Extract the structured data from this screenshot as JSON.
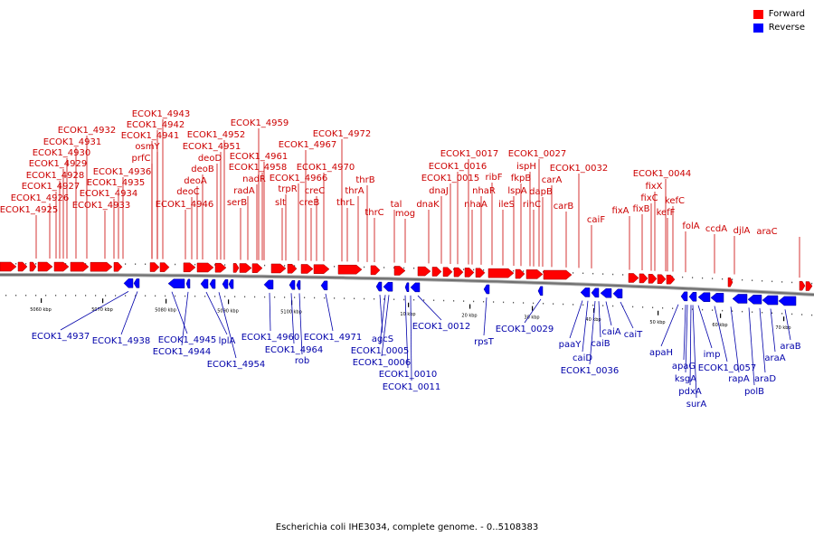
{
  "legend": {
    "forward_label": "Forward",
    "reverse_label": "Reverse",
    "forward_color": "#ff0000",
    "reverse_color": "#0000ff"
  },
  "caption": "Escherichia coli IHE3034, complete genome. - 0..5108383",
  "colors": {
    "forward_label": "#cc0000",
    "reverse_label": "#0000aa",
    "backbone": "#707070"
  },
  "forward_genes": [
    "ECOK1_4925",
    "ECOK1_4926",
    "ECOK1_4927",
    "ECOK1_4928",
    "ECOK1_4929",
    "ECOK1_4930",
    "ECOK1_4931",
    "ECOK1_4932",
    "ECOK1_4933",
    "ECOK1_4934",
    "ECOK1_4935",
    "ECOK1_4936",
    "ECOK1_4941",
    "ECOK1_4942",
    "ECOK1_4943",
    "prfC",
    "osmY",
    "deoC",
    "deoA",
    "deoB",
    "deoD",
    "ECOK1_4946",
    "ECOK1_4951",
    "ECOK1_4952",
    "serB",
    "radA",
    "nadR",
    "ECOK1_4958",
    "ECOK1_4961",
    "ECOK1_4959",
    "slt",
    "trpR",
    "ECOK1_4966",
    "ECOK1_4967",
    "creB",
    "creC",
    "ECOK1_4970",
    "ECOK1_4972",
    "thrL",
    "thrA",
    "thrB",
    "thrC",
    "tal",
    "mog",
    "dnaK",
    "dnaJ",
    "ECOK1_0015",
    "ECOK1_0016",
    "ECOK1_0017",
    "nhaA",
    "nhaR",
    "ribF",
    "ileS",
    "lspA",
    "fkpB",
    "ispH",
    "rihC",
    "dapB",
    "carA",
    "ECOK1_0027",
    "carB",
    "ECOK1_0032",
    "caiF",
    "fixA",
    "fixB",
    "fixC",
    "fixX",
    "ECOK1_0044",
    "kefF",
    "kefC",
    "folA",
    "ccdA",
    "djlA",
    "araC"
  ],
  "reverse_genes": [
    "ECOK1_4937",
    "ECOK1_4938",
    "ECOK1_4945",
    "ECOK1_4944",
    "lplA",
    "ECOK1_4954",
    "ECOK1_4960",
    "ECOK1_4964",
    "rob",
    "ECOK1_4971",
    "agcS",
    "ECOK1_0005",
    "ECOK1_0006",
    "ECOK1_0010",
    "ECOK1_0011",
    "ECOK1_0012",
    "rpsT",
    "ECOK1_0029",
    "paaY",
    "caiD",
    "caiB",
    "caiA",
    "ECOK1_0036",
    "caiT",
    "apaH",
    "apaG",
    "ksgA",
    "pdxA",
    "surA",
    "imp",
    "ECOK1_0057",
    "rapA",
    "polB",
    "araD",
    "araA",
    "araB"
  ],
  "scale_labels": [
    "5060 kbp",
    "5070 kbp",
    "5080 kbp",
    "5090 kbp",
    "5100 kbp",
    "10 kbp",
    "20 kbp",
    "30 kbp",
    "40 kbp",
    "50 kbp",
    "60 kbp",
    "70 kbp"
  ]
}
